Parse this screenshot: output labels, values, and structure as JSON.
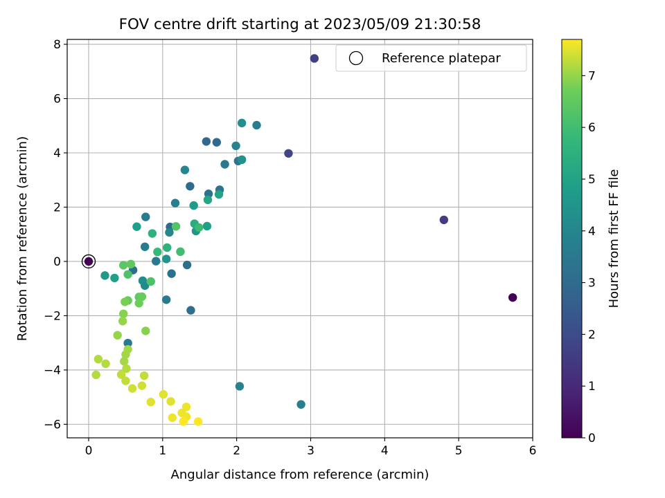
{
  "chart_data": {
    "type": "scatter",
    "title": "FOV centre drift starting at 2023/05/09 21:30:58",
    "xlabel": "Angular distance from reference (arcmin)",
    "ylabel": "Rotation from reference (arcmin)",
    "xlim": [
      -0.29,
      6.0
    ],
    "ylim": [
      -6.5,
      8.18
    ],
    "xticks": [
      0,
      1,
      2,
      3,
      4,
      5,
      6
    ],
    "yticks": [
      -6,
      -4,
      -2,
      0,
      2,
      4,
      6,
      8
    ],
    "grid": true,
    "legend": {
      "placement": "top-right",
      "entries": [
        "Reference platepar"
      ]
    },
    "reference_point": {
      "x": 0,
      "y": 0
    },
    "colorbar": {
      "label": "Hours from first FF file",
      "colormap": "viridis",
      "range": [
        0,
        7.7
      ],
      "ticks": [
        0,
        1,
        2,
        3,
        4,
        5,
        6,
        7
      ]
    },
    "points": [
      {
        "x": 0.0,
        "y": 0.0,
        "c": 0.0
      },
      {
        "x": 5.73,
        "y": -1.33,
        "c": 0.05
      },
      {
        "x": 4.8,
        "y": 1.53,
        "c": 1.55
      },
      {
        "x": 3.05,
        "y": 7.48,
        "c": 1.65
      },
      {
        "x": 2.7,
        "y": 3.98,
        "c": 1.8
      },
      {
        "x": 1.59,
        "y": 4.42,
        "c": 2.9
      },
      {
        "x": 1.73,
        "y": 4.39,
        "c": 2.95
      },
      {
        "x": 1.37,
        "y": 2.77,
        "c": 3.0
      },
      {
        "x": 1.1,
        "y": 1.27,
        "c": 3.0
      },
      {
        "x": 1.38,
        "y": -1.8,
        "c": 3.1
      },
      {
        "x": 1.33,
        "y": -0.13,
        "c": 3.15
      },
      {
        "x": 1.12,
        "y": -0.45,
        "c": 3.2
      },
      {
        "x": 0.6,
        "y": -0.32,
        "c": 3.2
      },
      {
        "x": 1.77,
        "y": 2.64,
        "c": 3.3
      },
      {
        "x": 1.62,
        "y": 2.49,
        "c": 3.3
      },
      {
        "x": 2.02,
        "y": 3.7,
        "c": 3.4
      },
      {
        "x": 1.84,
        "y": 3.58,
        "c": 3.5
      },
      {
        "x": 0.91,
        "y": 0.01,
        "c": 3.5
      },
      {
        "x": 1.05,
        "y": -1.41,
        "c": 3.5
      },
      {
        "x": 0.53,
        "y": -3.01,
        "c": 3.55
      },
      {
        "x": 0.77,
        "y": 1.64,
        "c": 3.6
      },
      {
        "x": 0.76,
        "y": 0.54,
        "c": 3.6
      },
      {
        "x": 1.17,
        "y": 2.15,
        "c": 3.7
      },
      {
        "x": 2.27,
        "y": 5.02,
        "c": 3.7
      },
      {
        "x": 2.87,
        "y": -5.27,
        "c": 3.7
      },
      {
        "x": 2.04,
        "y": -4.6,
        "c": 3.8
      },
      {
        "x": 1.99,
        "y": 4.26,
        "c": 3.9
      },
      {
        "x": 1.3,
        "y": 3.37,
        "c": 4.0
      },
      {
        "x": 1.09,
        "y": 1.07,
        "c": 4.0
      },
      {
        "x": 0.76,
        "y": -0.89,
        "c": 4.1
      },
      {
        "x": 0.73,
        "y": -0.71,
        "c": 4.2
      },
      {
        "x": 2.07,
        "y": 5.1,
        "c": 4.3
      },
      {
        "x": 2.07,
        "y": 3.75,
        "c": 4.4
      },
      {
        "x": 1.45,
        "y": 1.12,
        "c": 4.5
      },
      {
        "x": 1.05,
        "y": 0.09,
        "c": 4.5
      },
      {
        "x": 0.22,
        "y": -0.52,
        "c": 4.6
      },
      {
        "x": 1.42,
        "y": 2.06,
        "c": 4.7
      },
      {
        "x": 0.65,
        "y": 1.28,
        "c": 4.8
      },
      {
        "x": 1.6,
        "y": 1.3,
        "c": 4.9
      },
      {
        "x": 0.35,
        "y": -0.61,
        "c": 4.9
      },
      {
        "x": 1.76,
        "y": 2.47,
        "c": 5.0
      },
      {
        "x": 1.61,
        "y": 2.27,
        "c": 5.1
      },
      {
        "x": 1.43,
        "y": 1.39,
        "c": 5.3
      },
      {
        "x": 0.86,
        "y": 1.03,
        "c": 5.5
      },
      {
        "x": 1.06,
        "y": 0.51,
        "c": 5.6
      },
      {
        "x": 0.93,
        "y": 0.35,
        "c": 5.8
      },
      {
        "x": 1.49,
        "y": 1.25,
        "c": 5.9
      },
      {
        "x": 1.24,
        "y": 0.36,
        "c": 6.0
      },
      {
        "x": 0.84,
        "y": -0.74,
        "c": 6.2
      },
      {
        "x": 0.53,
        "y": -0.48,
        "c": 6.2
      },
      {
        "x": 1.18,
        "y": 1.29,
        "c": 6.3
      },
      {
        "x": 0.47,
        "y": -0.14,
        "c": 6.4
      },
      {
        "x": 0.57,
        "y": -0.1,
        "c": 6.5
      },
      {
        "x": 0.68,
        "y": -1.31,
        "c": 6.5
      },
      {
        "x": 0.72,
        "y": -1.3,
        "c": 6.6
      },
      {
        "x": 0.53,
        "y": -1.44,
        "c": 6.6
      },
      {
        "x": 0.68,
        "y": -1.54,
        "c": 6.7
      },
      {
        "x": 0.49,
        "y": -1.49,
        "c": 6.8
      },
      {
        "x": 0.77,
        "y": -2.56,
        "c": 6.9
      },
      {
        "x": 0.47,
        "y": -1.93,
        "c": 6.9
      },
      {
        "x": 0.46,
        "y": -2.2,
        "c": 7.0
      },
      {
        "x": 0.39,
        "y": -2.72,
        "c": 7.0
      },
      {
        "x": 0.53,
        "y": -3.24,
        "c": 7.1
      },
      {
        "x": 0.5,
        "y": -3.43,
        "c": 7.1
      },
      {
        "x": 0.48,
        "y": -3.68,
        "c": 7.1
      },
      {
        "x": 0.13,
        "y": -3.6,
        "c": 7.2
      },
      {
        "x": 0.23,
        "y": -3.77,
        "c": 7.2
      },
      {
        "x": 0.51,
        "y": -3.95,
        "c": 7.2
      },
      {
        "x": 0.1,
        "y": -4.18,
        "c": 7.2
      },
      {
        "x": 0.44,
        "y": -4.17,
        "c": 7.3
      },
      {
        "x": 0.75,
        "y": -4.21,
        "c": 7.3
      },
      {
        "x": 0.5,
        "y": -4.4,
        "c": 7.3
      },
      {
        "x": 0.72,
        "y": -4.58,
        "c": 7.4
      },
      {
        "x": 0.59,
        "y": -4.68,
        "c": 7.4
      },
      {
        "x": 1.01,
        "y": -4.9,
        "c": 7.5
      },
      {
        "x": 1.11,
        "y": -5.16,
        "c": 7.5
      },
      {
        "x": 0.84,
        "y": -5.18,
        "c": 7.5
      },
      {
        "x": 1.32,
        "y": -5.36,
        "c": 7.6
      },
      {
        "x": 1.26,
        "y": -5.58,
        "c": 7.6
      },
      {
        "x": 1.32,
        "y": -5.72,
        "c": 7.6
      },
      {
        "x": 1.13,
        "y": -5.76,
        "c": 7.6
      },
      {
        "x": 1.28,
        "y": -5.9,
        "c": 7.7
      },
      {
        "x": 1.48,
        "y": -5.9,
        "c": 7.7
      }
    ]
  }
}
